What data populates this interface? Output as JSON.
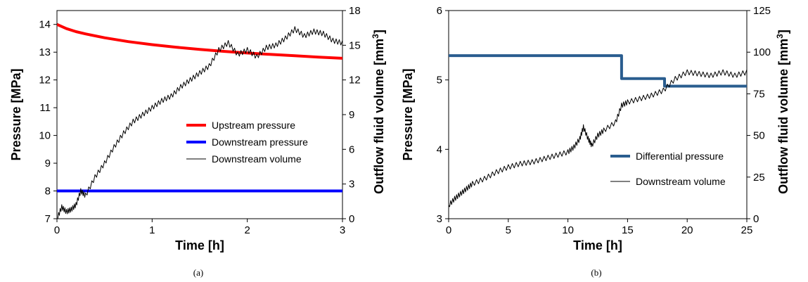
{
  "chart_data": [
    {
      "panel": "(a)",
      "type": "line",
      "xlabel": "Time [h]",
      "ylabel": "Pressure [MPa]",
      "y2label": "Outflow fluid volume [mm",
      "y2label_sup": "3",
      "y2label_end": "]",
      "xlim": [
        0,
        3
      ],
      "ylim": [
        7,
        14.5
      ],
      "y2lim": [
        0,
        18
      ],
      "xticks": [
        "0",
        "1",
        "2",
        "3"
      ],
      "yticks": [
        "7",
        "8",
        "9",
        "10",
        "11",
        "12",
        "13",
        "14"
      ],
      "y2ticks": [
        "0",
        "3",
        "6",
        "9",
        "12",
        "15",
        "18"
      ],
      "legend_position": "center-right",
      "series": [
        {
          "name": "Upstream pressure",
          "color": "#ff0000",
          "axis": "left",
          "x": [
            0,
            0.1,
            0.2,
            0.3,
            0.5,
            0.75,
            1.0,
            1.25,
            1.5,
            1.75,
            2.0,
            2.25,
            2.5,
            2.75,
            3.0
          ],
          "y": [
            14.0,
            13.85,
            13.74,
            13.66,
            13.52,
            13.38,
            13.27,
            13.18,
            13.1,
            13.03,
            12.97,
            12.92,
            12.87,
            12.82,
            12.78
          ]
        },
        {
          "name": "Downstream pressure",
          "color": "#0000ff",
          "axis": "left",
          "x": [
            0,
            3
          ],
          "y": [
            8.0,
            8.0
          ]
        },
        {
          "name": "Downstream volume",
          "color": "#000000",
          "axis": "right",
          "x": [
            0,
            0.05,
            0.1,
            0.15,
            0.2,
            0.25,
            0.3,
            0.4,
            0.5,
            0.6,
            0.7,
            0.8,
            0.9,
            1.0,
            1.1,
            1.2,
            1.3,
            1.4,
            1.5,
            1.6,
            1.7,
            1.8,
            1.9,
            2.0,
            2.1,
            2.2,
            2.3,
            2.4,
            2.5,
            2.6,
            2.7,
            2.8,
            2.9,
            3.0
          ],
          "y": [
            0.0,
            1.0,
            0.6,
            0.8,
            1.2,
            2.4,
            2.0,
            3.6,
            4.8,
            6.2,
            7.4,
            8.4,
            9.0,
            9.6,
            10.2,
            10.6,
            11.4,
            12.0,
            12.6,
            13.2,
            14.6,
            15.2,
            14.2,
            14.6,
            14.0,
            14.8,
            15.0,
            15.6,
            16.4,
            15.8,
            16.2,
            16.0,
            15.4,
            15.2
          ]
        }
      ]
    },
    {
      "panel": "(b)",
      "type": "line",
      "xlabel": "Time [h]",
      "ylabel": "Pressure [MPa]",
      "y2label": "Outflow fluid volume [mm",
      "y2label_sup": "3",
      "y2label_end": "]",
      "xlim": [
        0,
        25
      ],
      "ylim": [
        3,
        6
      ],
      "y2lim": [
        0,
        125
      ],
      "xticks": [
        "0",
        "5",
        "10",
        "15",
        "20",
        "25"
      ],
      "yticks": [
        "3",
        "4",
        "5",
        "6"
      ],
      "y2ticks": [
        "0",
        "25",
        "50",
        "75",
        "100",
        "125"
      ],
      "legend_position": "center-right",
      "series": [
        {
          "name": "Differential pressure",
          "color": "#2a5d8f",
          "axis": "left",
          "x": [
            0,
            14.5,
            14.5,
            18.1,
            18.1,
            25
          ],
          "y": [
            5.35,
            5.35,
            5.02,
            5.02,
            4.91,
            4.91
          ]
        },
        {
          "name": "Downstream volume",
          "color": "#000000",
          "axis": "right",
          "x": [
            0,
            0.5,
            1,
            1.5,
            2,
            3,
            4,
            5,
            6,
            7,
            8,
            9,
            10,
            10.5,
            11,
            11.3,
            11.7,
            12,
            12.5,
            13,
            14,
            14.5,
            15,
            16,
            17,
            18,
            19,
            20,
            21,
            22,
            23,
            24,
            25
          ],
          "y": [
            8,
            12,
            15,
            18,
            21,
            24,
            28,
            31,
            33,
            34,
            36,
            38,
            40,
            43,
            48,
            55,
            48,
            44,
            50,
            53,
            58,
            68,
            70,
            72,
            74,
            77,
            84,
            88,
            87,
            86,
            88,
            86,
            88
          ]
        }
      ]
    }
  ],
  "captions": [
    "(a)",
    "(b)"
  ]
}
